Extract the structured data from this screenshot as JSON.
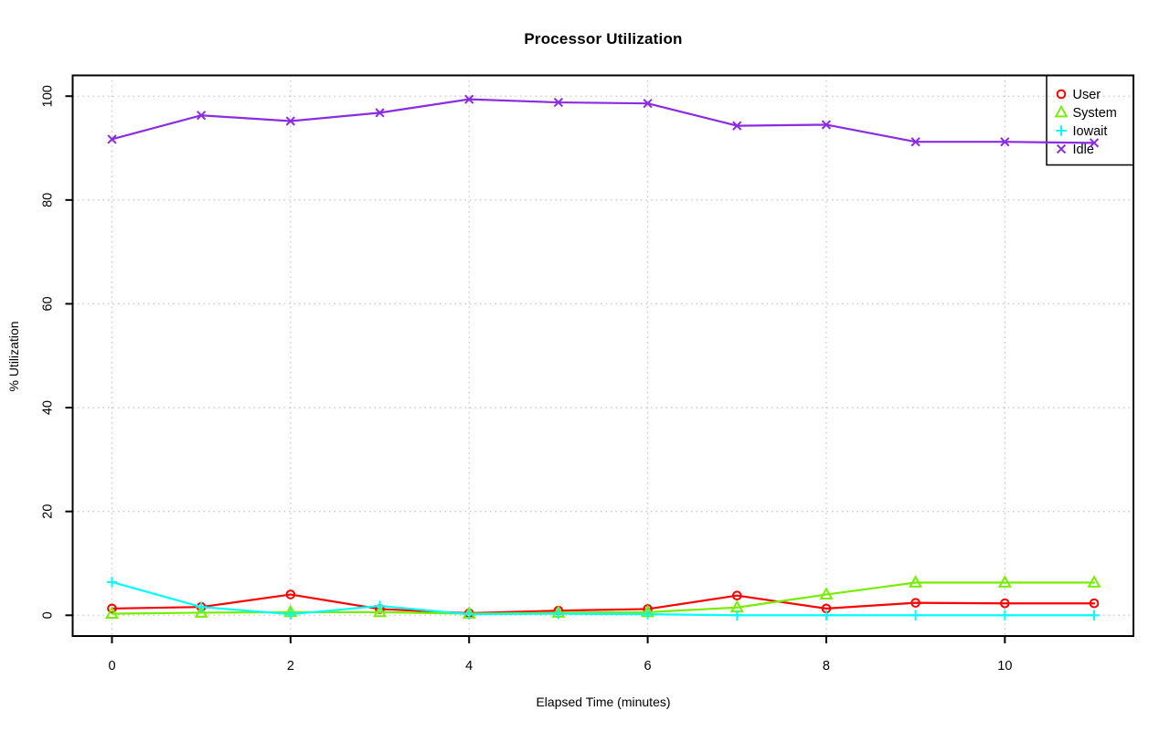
{
  "page": {
    "background": "#ffffff",
    "text_color": "#000000"
  },
  "chart_data": {
    "type": "line",
    "title": "Processor Utilization",
    "xlabel": "Elapsed Time (minutes)",
    "ylabel": "% Utilization",
    "xlim": [
      0,
      11
    ],
    "ylim": [
      0,
      100
    ],
    "x_ticks": [
      0,
      2,
      4,
      6,
      8,
      10
    ],
    "y_ticks": [
      0,
      20,
      40,
      60,
      80,
      100
    ],
    "grid": "dotted",
    "grid_color": "#C8C8C8",
    "axis_color": "#000000",
    "legend_position": "top-right",
    "x": [
      0,
      1,
      2,
      3,
      4,
      5,
      6,
      7,
      8,
      9,
      10,
      11
    ],
    "series": [
      {
        "name": "User",
        "color": "#FF0000",
        "marker": "circle",
        "values": [
          1.3,
          1.6,
          4.0,
          1.2,
          0.4,
          0.9,
          1.2,
          3.8,
          1.3,
          2.4,
          2.3,
          2.3
        ]
      },
      {
        "name": "System",
        "color": "#76EE00",
        "marker": "triangle",
        "values": [
          0.3,
          0.5,
          0.6,
          0.6,
          0.3,
          0.5,
          0.6,
          1.5,
          4.0,
          6.3,
          6.3,
          6.3
        ]
      },
      {
        "name": "Iowait",
        "color": "#00FFFF",
        "marker": "plus",
        "values": [
          6.4,
          1.6,
          0.2,
          1.8,
          0.2,
          0.3,
          0.2,
          0.0,
          0.0,
          0.0,
          0.0,
          0.0
        ]
      },
      {
        "name": "Idle",
        "color": "#8B2BE2",
        "marker": "x",
        "values": [
          91.7,
          96.3,
          95.2,
          96.8,
          99.4,
          98.8,
          98.6,
          94.3,
          94.5,
          91.2,
          91.2,
          91.0
        ]
      }
    ]
  }
}
